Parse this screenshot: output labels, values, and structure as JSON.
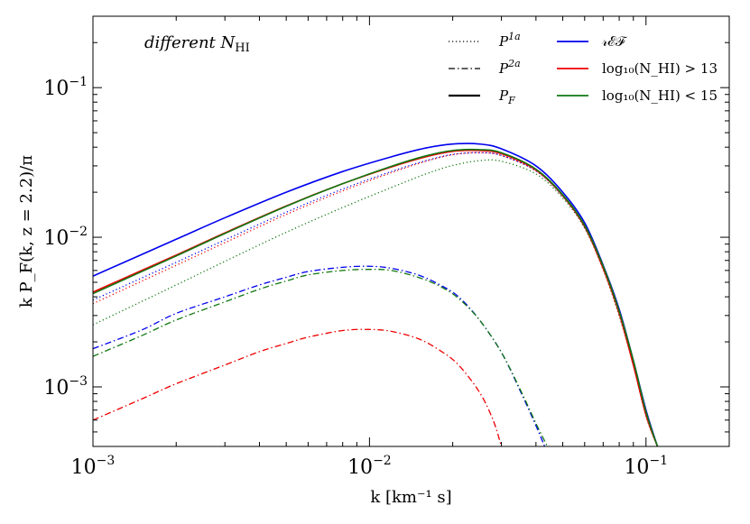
{
  "chart_data": {
    "type": "line",
    "title": "",
    "annotation": "different N_HI",
    "annotation_main": "different ",
    "annotation_var": "N",
    "annotation_sub": "HI",
    "xlabel": "k [km⁻¹ s]",
    "ylabel": "k P_F(k, z = 2.2)/π",
    "xscale": "log",
    "yscale": "log",
    "xlim": [
      0.001,
      0.2
    ],
    "ylim": [
      0.0004,
      0.3
    ],
    "x_ticks": [
      {
        "value": 0.001,
        "base": "10",
        "exp": "−3"
      },
      {
        "value": 0.01,
        "base": "10",
        "exp": "−2"
      },
      {
        "value": 0.1,
        "base": "10",
        "exp": "−1"
      }
    ],
    "y_ticks": [
      {
        "value": 0.001,
        "base": "10",
        "exp": "−3"
      },
      {
        "value": 0.01,
        "base": "10",
        "exp": "−2"
      },
      {
        "value": 0.1,
        "base": "10",
        "exp": "−1"
      }
    ],
    "colors": {
      "REF": "#0000ee",
      "gt13": "#ee0000",
      "lt15": "#117711"
    },
    "legend_style": [
      {
        "label": "P^{1a}",
        "base": "P",
        "sup": "1a",
        "sub": "",
        "dash": "1.2,2.8",
        "width": 1.2
      },
      {
        "label": "P^{2a}",
        "base": "P",
        "sup": "2a",
        "sub": "",
        "dash": "7,3,1.5,3",
        "width": 1.3
      },
      {
        "label": "P_F",
        "base": "P",
        "sup": "",
        "sub": "F",
        "dash": "",
        "width": 2.2
      }
    ],
    "legend_color": [
      {
        "label": "𝓇ℰℱ",
        "key": "REF"
      },
      {
        "label": "log₁₀(N_HI) > 13",
        "key": "gt13"
      },
      {
        "label": "log₁₀(N_HI) < 15",
        "key": "lt15"
      }
    ],
    "series": [
      {
        "name": "REF P_F",
        "color": "REF",
        "style": "solid",
        "x": [
          0.001,
          0.002,
          0.003,
          0.005,
          0.008,
          0.012,
          0.016,
          0.02,
          0.025,
          0.03,
          0.04,
          0.05,
          0.06,
          0.07,
          0.08,
          0.09,
          0.1,
          0.11
        ],
        "y": [
          0.0055,
          0.0097,
          0.0135,
          0.02,
          0.0275,
          0.0345,
          0.0395,
          0.042,
          0.042,
          0.039,
          0.03,
          0.02,
          0.0125,
          0.0065,
          0.0033,
          0.0015,
          0.0007,
          0.0004
        ]
      },
      {
        "name": "N_HI>13 P_F",
        "color": "gt13",
        "style": "solid",
        "x": [
          0.001,
          0.002,
          0.003,
          0.005,
          0.008,
          0.012,
          0.016,
          0.02,
          0.025,
          0.03,
          0.04,
          0.05,
          0.06,
          0.07,
          0.08,
          0.09,
          0.1,
          0.11
        ],
        "y": [
          0.0043,
          0.0076,
          0.0107,
          0.0162,
          0.0228,
          0.0295,
          0.0345,
          0.0375,
          0.038,
          0.0362,
          0.0282,
          0.019,
          0.0118,
          0.0062,
          0.0031,
          0.0014,
          0.00065,
          0.0004
        ]
      },
      {
        "name": "N_HI<15 P_F",
        "color": "lt15",
        "style": "solid",
        "x": [
          0.001,
          0.002,
          0.003,
          0.005,
          0.008,
          0.012,
          0.016,
          0.02,
          0.025,
          0.03,
          0.04,
          0.05,
          0.06,
          0.07,
          0.08,
          0.09,
          0.1,
          0.11
        ],
        "y": [
          0.0042,
          0.0075,
          0.0106,
          0.0161,
          0.0228,
          0.0298,
          0.035,
          0.038,
          0.0385,
          0.0367,
          0.0285,
          0.0192,
          0.012,
          0.0064,
          0.0032,
          0.0015,
          0.00068,
          0.0004
        ]
      },
      {
        "name": "REF P^1a",
        "color": "REF",
        "style": "dotted",
        "x": [
          0.001,
          0.002,
          0.003,
          0.005,
          0.008,
          0.012,
          0.016,
          0.02,
          0.025,
          0.03,
          0.04,
          0.05,
          0.06,
          0.07,
          0.08,
          0.09,
          0.1,
          0.11
        ],
        "y": [
          0.0038,
          0.0068,
          0.0096,
          0.0147,
          0.021,
          0.0275,
          0.0325,
          0.0358,
          0.0368,
          0.0352,
          0.0278,
          0.0188,
          0.0117,
          0.0062,
          0.0031,
          0.0014,
          0.00065,
          0.0004
        ]
      },
      {
        "name": "N_HI>13 P^1a",
        "color": "gt13",
        "style": "dotted",
        "x": [
          0.001,
          0.002,
          0.003,
          0.005,
          0.008,
          0.012,
          0.016,
          0.02,
          0.025,
          0.03,
          0.04,
          0.05,
          0.06,
          0.07,
          0.08,
          0.09,
          0.1,
          0.11
        ],
        "y": [
          0.0036,
          0.0065,
          0.0092,
          0.0142,
          0.0204,
          0.027,
          0.0322,
          0.0356,
          0.0367,
          0.0352,
          0.0278,
          0.0188,
          0.0116,
          0.0061,
          0.003,
          0.0014,
          0.00064,
          0.0004
        ]
      },
      {
        "name": "N_HI<15 P^1a",
        "color": "lt15",
        "style": "dotted",
        "x": [
          0.001,
          0.002,
          0.003,
          0.005,
          0.008,
          0.012,
          0.016,
          0.02,
          0.025,
          0.03,
          0.04,
          0.05,
          0.06,
          0.07,
          0.08,
          0.09,
          0.1,
          0.11
        ],
        "y": [
          0.0026,
          0.0048,
          0.0069,
          0.0108,
          0.0158,
          0.0215,
          0.0265,
          0.0302,
          0.0325,
          0.0322,
          0.0265,
          0.0183,
          0.0115,
          0.0061,
          0.003,
          0.0014,
          0.00064,
          0.0004
        ]
      },
      {
        "name": "REF P^2a",
        "color": "REF",
        "style": "dashdot",
        "x": [
          0.001,
          0.0015,
          0.002,
          0.003,
          0.004,
          0.005,
          0.006,
          0.008,
          0.01,
          0.012,
          0.015,
          0.018,
          0.021,
          0.025,
          0.03,
          0.035,
          0.04,
          0.043
        ],
        "y": [
          0.0018,
          0.0024,
          0.0031,
          0.004,
          0.0048,
          0.0054,
          0.0059,
          0.0063,
          0.0064,
          0.0062,
          0.0056,
          0.0048,
          0.004,
          0.0028,
          0.0017,
          0.00095,
          0.00055,
          0.0004
        ]
      },
      {
        "name": "N_HI<15 P^2a",
        "color": "lt15",
        "style": "dashdot",
        "x": [
          0.001,
          0.0015,
          0.002,
          0.003,
          0.004,
          0.005,
          0.006,
          0.008,
          0.01,
          0.012,
          0.015,
          0.018,
          0.021,
          0.025,
          0.03,
          0.035,
          0.04,
          0.044
        ],
        "y": [
          0.0016,
          0.0022,
          0.0028,
          0.0037,
          0.0045,
          0.0051,
          0.0056,
          0.006,
          0.0061,
          0.006,
          0.0054,
          0.0047,
          0.0039,
          0.0028,
          0.0017,
          0.00097,
          0.00057,
          0.0004
        ]
      },
      {
        "name": "N_HI>13 P^2a",
        "color": "gt13",
        "style": "dashdot",
        "x": [
          0.001,
          0.0015,
          0.002,
          0.003,
          0.004,
          0.005,
          0.006,
          0.008,
          0.01,
          0.012,
          0.015,
          0.018,
          0.021,
          0.025,
          0.028,
          0.03
        ],
        "y": [
          0.0006,
          0.00083,
          0.00105,
          0.0014,
          0.00172,
          0.00195,
          0.00215,
          0.00238,
          0.00242,
          0.00235,
          0.0021,
          0.00175,
          0.0014,
          0.00092,
          0.0006,
          0.0004
        ]
      }
    ]
  }
}
